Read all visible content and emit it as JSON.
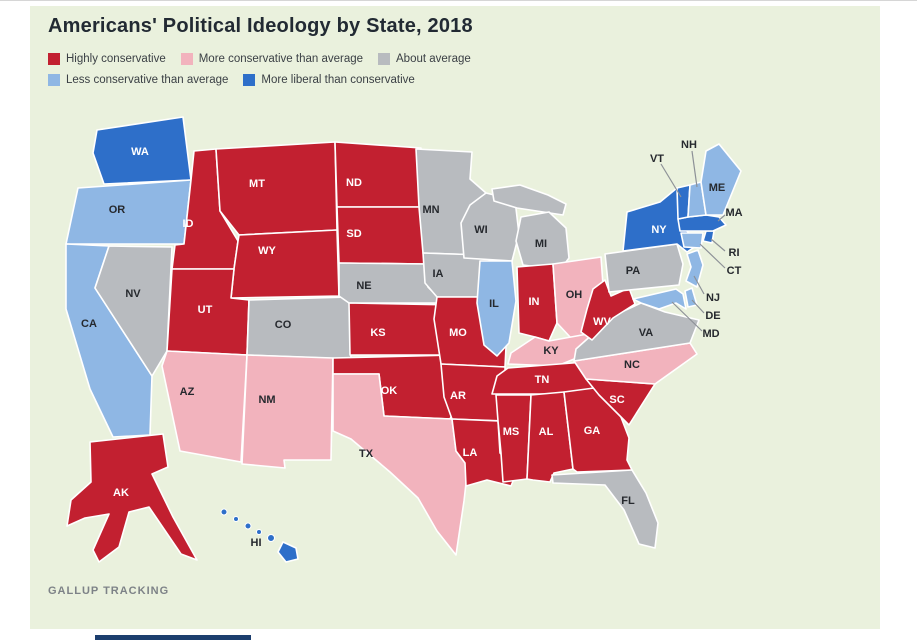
{
  "header": {
    "title": "Americans' Political Ideology by State, 2018"
  },
  "footer": {
    "source": "GALLUP TRACKING"
  },
  "style": {
    "panel_background": "#eaf1dd",
    "title_color": "#222a33",
    "legend_text_color": "#3b4045",
    "source_color": "#7d8287",
    "leader_line_color": "#8d9197",
    "state_label_dark": "#26292e",
    "state_label_light": "#ffffff",
    "map_stroke": "#ffffff",
    "bottom_bar_color": "#1c3e6e"
  },
  "chart_data": {
    "type": "choropleth",
    "title": "Americans' Political Ideology by State, 2018",
    "source": "GALLUP TRACKING",
    "legend_position": "top-left",
    "categories": {
      "highly_conservative": {
        "label": "Highly conservative",
        "color": "#c22030"
      },
      "more_conservative": {
        "label": "More conservative than average",
        "color": "#f2b3bd"
      },
      "about_average": {
        "label": "About average",
        "color": "#b8bbbf"
      },
      "less_conservative": {
        "label": "Less conservative than average",
        "color": "#8fb7e4"
      },
      "more_liberal": {
        "label": "More liberal than conservative",
        "color": "#2e6fc9"
      }
    },
    "legend_rows": [
      [
        "highly_conservative",
        "more_conservative",
        "about_average"
      ],
      [
        "less_conservative",
        "more_liberal"
      ]
    ],
    "states": [
      {
        "abbr": "WA",
        "category": "more_liberal"
      },
      {
        "abbr": "OR",
        "category": "less_conservative"
      },
      {
        "abbr": "CA",
        "category": "less_conservative"
      },
      {
        "abbr": "NV",
        "category": "about_average"
      },
      {
        "abbr": "ID",
        "category": "highly_conservative"
      },
      {
        "abbr": "MT",
        "category": "highly_conservative"
      },
      {
        "abbr": "WY",
        "category": "highly_conservative"
      },
      {
        "abbr": "UT",
        "category": "highly_conservative"
      },
      {
        "abbr": "AZ",
        "category": "more_conservative"
      },
      {
        "abbr": "CO",
        "category": "about_average"
      },
      {
        "abbr": "NM",
        "category": "more_conservative"
      },
      {
        "abbr": "ND",
        "category": "highly_conservative"
      },
      {
        "abbr": "SD",
        "category": "highly_conservative"
      },
      {
        "abbr": "NE",
        "category": "about_average"
      },
      {
        "abbr": "KS",
        "category": "highly_conservative"
      },
      {
        "abbr": "OK",
        "category": "highly_conservative"
      },
      {
        "abbr": "TX",
        "category": "more_conservative"
      },
      {
        "abbr": "MN",
        "category": "about_average"
      },
      {
        "abbr": "IA",
        "category": "about_average"
      },
      {
        "abbr": "MO",
        "category": "highly_conservative"
      },
      {
        "abbr": "AR",
        "category": "highly_conservative"
      },
      {
        "abbr": "LA",
        "category": "highly_conservative"
      },
      {
        "abbr": "WI",
        "category": "about_average"
      },
      {
        "abbr": "IL",
        "category": "less_conservative"
      },
      {
        "abbr": "MI",
        "category": "about_average"
      },
      {
        "abbr": "IN",
        "category": "highly_conservative"
      },
      {
        "abbr": "OH",
        "category": "more_conservative"
      },
      {
        "abbr": "KY",
        "category": "more_conservative"
      },
      {
        "abbr": "TN",
        "category": "highly_conservative"
      },
      {
        "abbr": "MS",
        "category": "highly_conservative"
      },
      {
        "abbr": "AL",
        "category": "highly_conservative"
      },
      {
        "abbr": "GA",
        "category": "highly_conservative"
      },
      {
        "abbr": "FL",
        "category": "about_average"
      },
      {
        "abbr": "SC",
        "category": "highly_conservative"
      },
      {
        "abbr": "NC",
        "category": "more_conservative"
      },
      {
        "abbr": "VA",
        "category": "about_average"
      },
      {
        "abbr": "WV",
        "category": "highly_conservative"
      },
      {
        "abbr": "PA",
        "category": "about_average"
      },
      {
        "abbr": "NY",
        "category": "more_liberal"
      },
      {
        "abbr": "NJ",
        "category": "less_conservative"
      },
      {
        "abbr": "DE",
        "category": "less_conservative"
      },
      {
        "abbr": "MD",
        "category": "less_conservative"
      },
      {
        "abbr": "CT",
        "category": "less_conservative"
      },
      {
        "abbr": "RI",
        "category": "more_liberal"
      },
      {
        "abbr": "MA",
        "category": "more_liberal"
      },
      {
        "abbr": "VT",
        "category": "more_liberal"
      },
      {
        "abbr": "NH",
        "category": "less_conservative"
      },
      {
        "abbr": "ME",
        "category": "less_conservative"
      },
      {
        "abbr": "AK",
        "category": "highly_conservative"
      },
      {
        "abbr": "HI",
        "category": "more_liberal"
      }
    ]
  }
}
